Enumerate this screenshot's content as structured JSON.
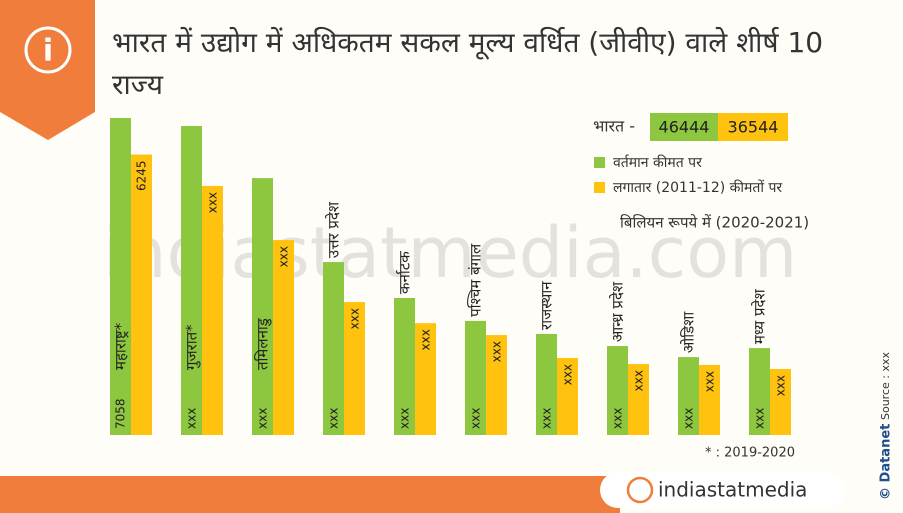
{
  "chart_data": {
    "type": "bar",
    "title": "भारत में उद्योग में अधिकतम सकल मूल्य वर्धित (जीवीए) वाले शीर्ष 10 राज्य",
    "total_label": "भारत -",
    "totals": [
      46444,
      36544
    ],
    "unit": "बिलियन रूपये में (2020-2021)",
    "footnote": "* : 2019-2020",
    "categories": [
      "महाराष्ट्र*",
      "गुजरात*",
      "तमिलनाडु",
      "उत्तर प्रदेश",
      "कर्नाटक",
      "पश्चिम बंगाल",
      "राजस्थान",
      "आन्ध्र प्रदेश",
      "ओडिशा",
      "मध्य प्रदेश"
    ],
    "series": [
      {
        "name": "वर्तमान कीमत पर",
        "color": "#8dc63f",
        "values": [
          7058,
          6880,
          5720,
          3850,
          3050,
          2540,
          2250,
          1980,
          1735,
          1935
        ],
        "value_labels": [
          "7058",
          "xxx",
          "xxx",
          "xxx",
          "xxx",
          "xxx",
          "xxx",
          "xxx",
          "xxx",
          "xxx"
        ]
      },
      {
        "name": "लगातार (2011-12) कीमतों पर",
        "color": "#ffc20e",
        "values": [
          6245,
          5545,
          4340,
          2960,
          2490,
          2225,
          1715,
          1580,
          1560,
          1470
        ],
        "value_labels": [
          "6245",
          "xxx",
          "xxx",
          "xxx",
          "xxx",
          "xxx",
          "xxx",
          "xxx",
          "xxx",
          "xxx"
        ]
      }
    ]
  },
  "watermark": "indiastatmedia.com",
  "source": "Source : xxx",
  "brand": "© Datanet",
  "logo": "indiastatmedia"
}
